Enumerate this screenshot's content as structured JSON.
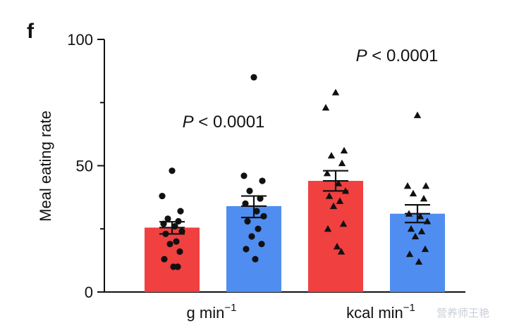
{
  "panel_label": "f",
  "watermark": "营养师王艳",
  "chart_data": {
    "type": "bar",
    "ylabel": "Meal eating rate",
    "ylim": [
      0,
      100
    ],
    "yticks": [
      0,
      50,
      100
    ],
    "groups": [
      {
        "label": "g min",
        "label_sup": "−1",
        "p_value": {
          "italic": "P",
          "rest": " < 0.0001"
        },
        "bars": [
          {
            "color": "#f04040",
            "marker": "circle",
            "mean": 25.5,
            "sem_low": 23.0,
            "sem_high": 27.8,
            "points": [
              48,
              38,
              32,
              29,
              28,
              27,
              26,
              24,
              23,
              20,
              19,
              16,
              13,
              10,
              10
            ]
          },
          {
            "color": "#4f8ef0",
            "marker": "circle",
            "mean": 34.0,
            "sem_low": 29.5,
            "sem_high": 38.0,
            "points": [
              85,
              46,
              44,
              40,
              37,
              35,
              32,
              30,
              28,
              25,
              22,
              19,
              17,
              13
            ]
          }
        ]
      },
      {
        "label": "kcal min",
        "label_sup": "−1",
        "p_value": {
          "italic": "P",
          "rest": " < 0.0001"
        },
        "bars": [
          {
            "color": "#f04040",
            "marker": "triangle",
            "mean": 44.0,
            "sem_low": 40.0,
            "sem_high": 48.0,
            "points": [
              79,
              73,
              56,
              54,
              51,
              47,
              43,
              40,
              38,
              36,
              34,
              27,
              25,
              18,
              16
            ]
          },
          {
            "color": "#4f8ef0",
            "marker": "triangle",
            "mean": 31.0,
            "sem_low": 27.5,
            "sem_high": 34.5,
            "points": [
              70,
              42,
              42,
              39,
              37,
              31,
              30,
              28,
              25,
              24,
              22,
              17,
              15,
              12
            ]
          }
        ]
      }
    ]
  }
}
